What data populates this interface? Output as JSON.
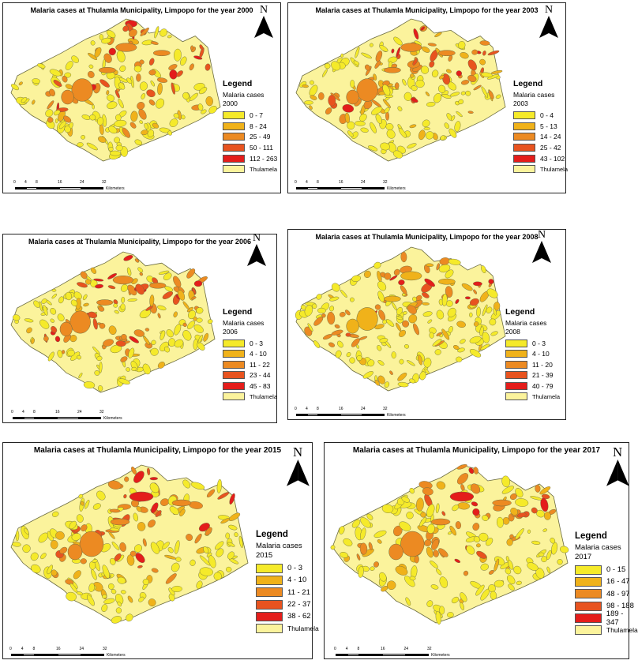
{
  "colors": {
    "class1": "#f5ea2a",
    "class2": "#f0b21a",
    "class3": "#ec8a22",
    "class4": "#e8531f",
    "class5": "#e41d1b",
    "base": "#fbf39c",
    "outline": "#6b6b40"
  },
  "icons": {
    "north": "north-arrow-icon"
  },
  "maps": [
    {
      "title": "Malaria cases at Thulamla Municipality, Limpopo for the year 2000",
      "north_label": "N",
      "legend": {
        "heading": "Legend",
        "field": "Malaria cases",
        "year": "2000",
        "classes": [
          "0 - 7",
          "8 - 24",
          "25 - 49",
          "50 - 111",
          "112 - 263"
        ],
        "base_label": "Thulamela"
      },
      "scale": {
        "ticks": [
          "0",
          "4",
          "8",
          "16",
          "24",
          "32"
        ],
        "unit": "Kilometers"
      }
    },
    {
      "title": "Malaria cases at Thulamla Municipality, Limpopo for the year 2003",
      "north_label": "N",
      "legend": {
        "heading": "Legend",
        "field": "Malaria cases",
        "year": "2003",
        "classes": [
          "0 - 4",
          "5 - 13",
          "14 - 24",
          "25 - 42",
          "43 - 102"
        ],
        "base_label": "Thulamela"
      },
      "scale": {
        "ticks": [
          "0",
          "4",
          "8",
          "16",
          "24",
          "32"
        ],
        "unit": "Kilometers"
      }
    },
    {
      "title": "Malaria cases at Thulamla Municipality, Limpopo for the year 2006",
      "north_label": "N",
      "legend": {
        "heading": "Legend",
        "field": "Malaria cases",
        "year": "2006",
        "classes": [
          "0 - 3",
          "4 - 10",
          "11 - 22",
          "23 - 44",
          "45 - 83"
        ],
        "base_label": "Thulamela"
      },
      "scale": {
        "ticks": [
          "0",
          "4",
          "8",
          "16",
          "24",
          "32"
        ],
        "unit": "Kilometers"
      }
    },
    {
      "title": "Malaria cases at Thulamla Municipality, Limpopo for the year 2008",
      "north_label": "N",
      "legend": {
        "heading": "Legend",
        "field": "Malaria cases",
        "year": "2008",
        "classes": [
          "0 - 3",
          "4 - 10",
          "11 - 20",
          "21 - 39",
          "40 - 79"
        ],
        "base_label": "Thulamela"
      },
      "scale": {
        "ticks": [
          "0",
          "4",
          "8",
          "16",
          "24",
          "32"
        ],
        "unit": "Kilometers"
      }
    },
    {
      "title": "Malaria cases at Thulamla Municipality, Limpopo for the year 2015",
      "north_label": "N",
      "legend": {
        "heading": "Legend",
        "field": "Malaria cases",
        "year": "2015",
        "classes": [
          "0 - 3",
          "4 - 10",
          "11 - 21",
          "22 - 37",
          "38 - 62"
        ],
        "base_label": "Thulamela"
      },
      "scale": {
        "ticks": [
          "0",
          "4",
          "8",
          "16",
          "24",
          "32"
        ],
        "unit": "Kilometers"
      }
    },
    {
      "title": "Malaria cases at Thulamla Municipality, Limpopo for the year 2017",
      "north_label": "N",
      "legend": {
        "heading": "Legend",
        "field": "Malaria cases",
        "year": "2017",
        "classes": [
          "0 - 15",
          "16 - 47",
          "48 - 97",
          "98 - 188",
          "189 - 347"
        ],
        "base_label": "Thulamela"
      },
      "scale": {
        "ticks": [
          "0",
          "4",
          "8",
          "16",
          "24",
          "32"
        ],
        "unit": "Kilometers"
      }
    }
  ]
}
